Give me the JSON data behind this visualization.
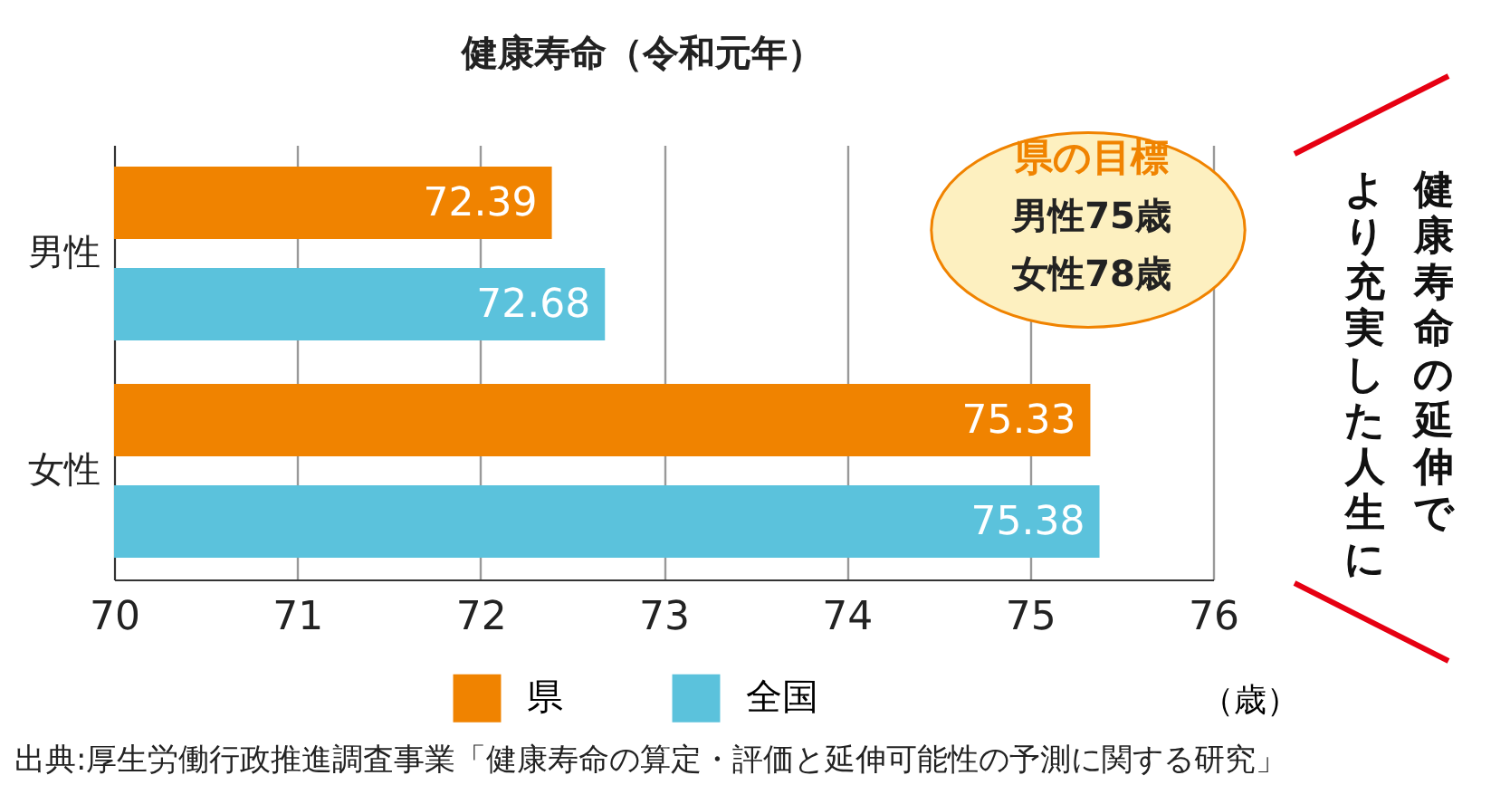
{
  "chart_data": {
    "type": "bar",
    "orientation": "horizontal",
    "title": "健康寿命（令和元年）",
    "xlabel": "（歳）",
    "categories": [
      "男性",
      "女性"
    ],
    "series": [
      {
        "name": "県",
        "color": "#f08300",
        "values": [
          72.39,
          75.33
        ]
      },
      {
        "name": "全国",
        "color": "#5bc2dc",
        "values": [
          72.68,
          75.38
        ]
      }
    ],
    "xlim": [
      70,
      76
    ],
    "xticks": [
      70,
      71,
      72,
      73,
      74,
      75,
      76
    ],
    "grid": "x",
    "legend": "bottom",
    "data_labels": true,
    "annotations": [
      "県の目標",
      "男性75歳",
      "女性78歳",
      "健康寿命の延伸で",
      "より充実した人生に",
      "出典:厚生労働行政推進調査事業「健康寿命の算定・評価と延伸可能性の予測に関する研究」"
    ]
  }
}
